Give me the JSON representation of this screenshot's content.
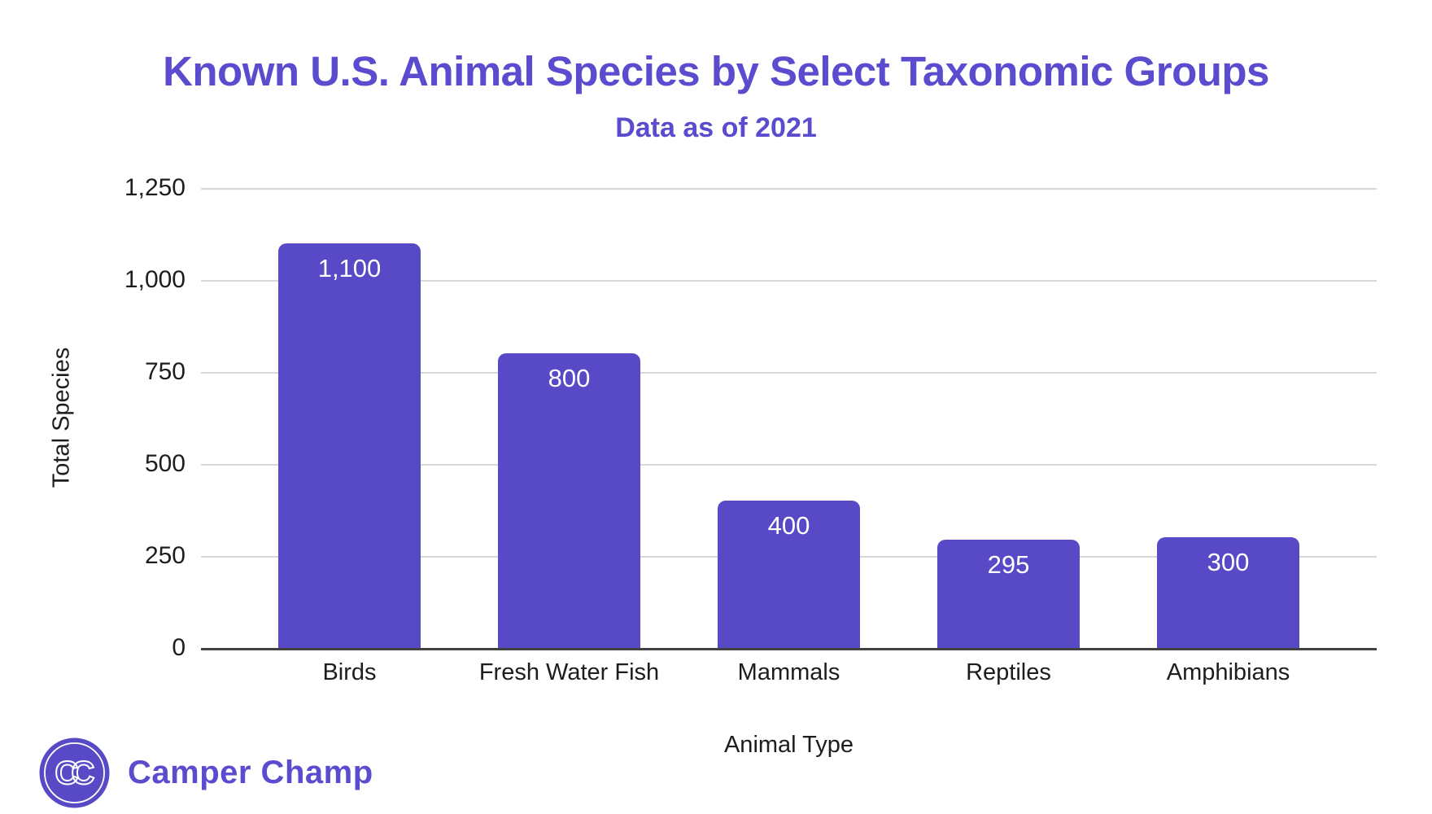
{
  "chart_data": {
    "type": "bar",
    "title": "Known U.S. Animal Species by Select Taxonomic Groups",
    "subtitle": "Data as of 2021",
    "xlabel": "Animal Type",
    "ylabel": "Total Species",
    "categories": [
      "Birds",
      "Fresh Water Fish",
      "Mammals",
      "Reptiles",
      "Amphibians"
    ],
    "values": [
      1100,
      800,
      400,
      295,
      300
    ],
    "value_labels": [
      "1,100",
      "800",
      "400",
      "295",
      "300"
    ],
    "ylim": [
      0,
      1250
    ],
    "yticks": [
      0,
      250,
      500,
      750,
      1000,
      1250
    ],
    "ytick_labels": [
      "0",
      "250",
      "500",
      "750",
      "1,000",
      "1,250"
    ],
    "grid": "horizontal",
    "legend": "none",
    "bar_color": "#5849c6",
    "title_color": "#5b4bce",
    "gridline_color": "#d8d8d8",
    "axis_color": "#424242",
    "value_label_color": "#ffffff"
  },
  "branding": {
    "brand_name": "Camper Champ",
    "logo_monogram": "CC",
    "brand_color": "#5b4bce",
    "logo_icon": "cc-circle-icon"
  }
}
